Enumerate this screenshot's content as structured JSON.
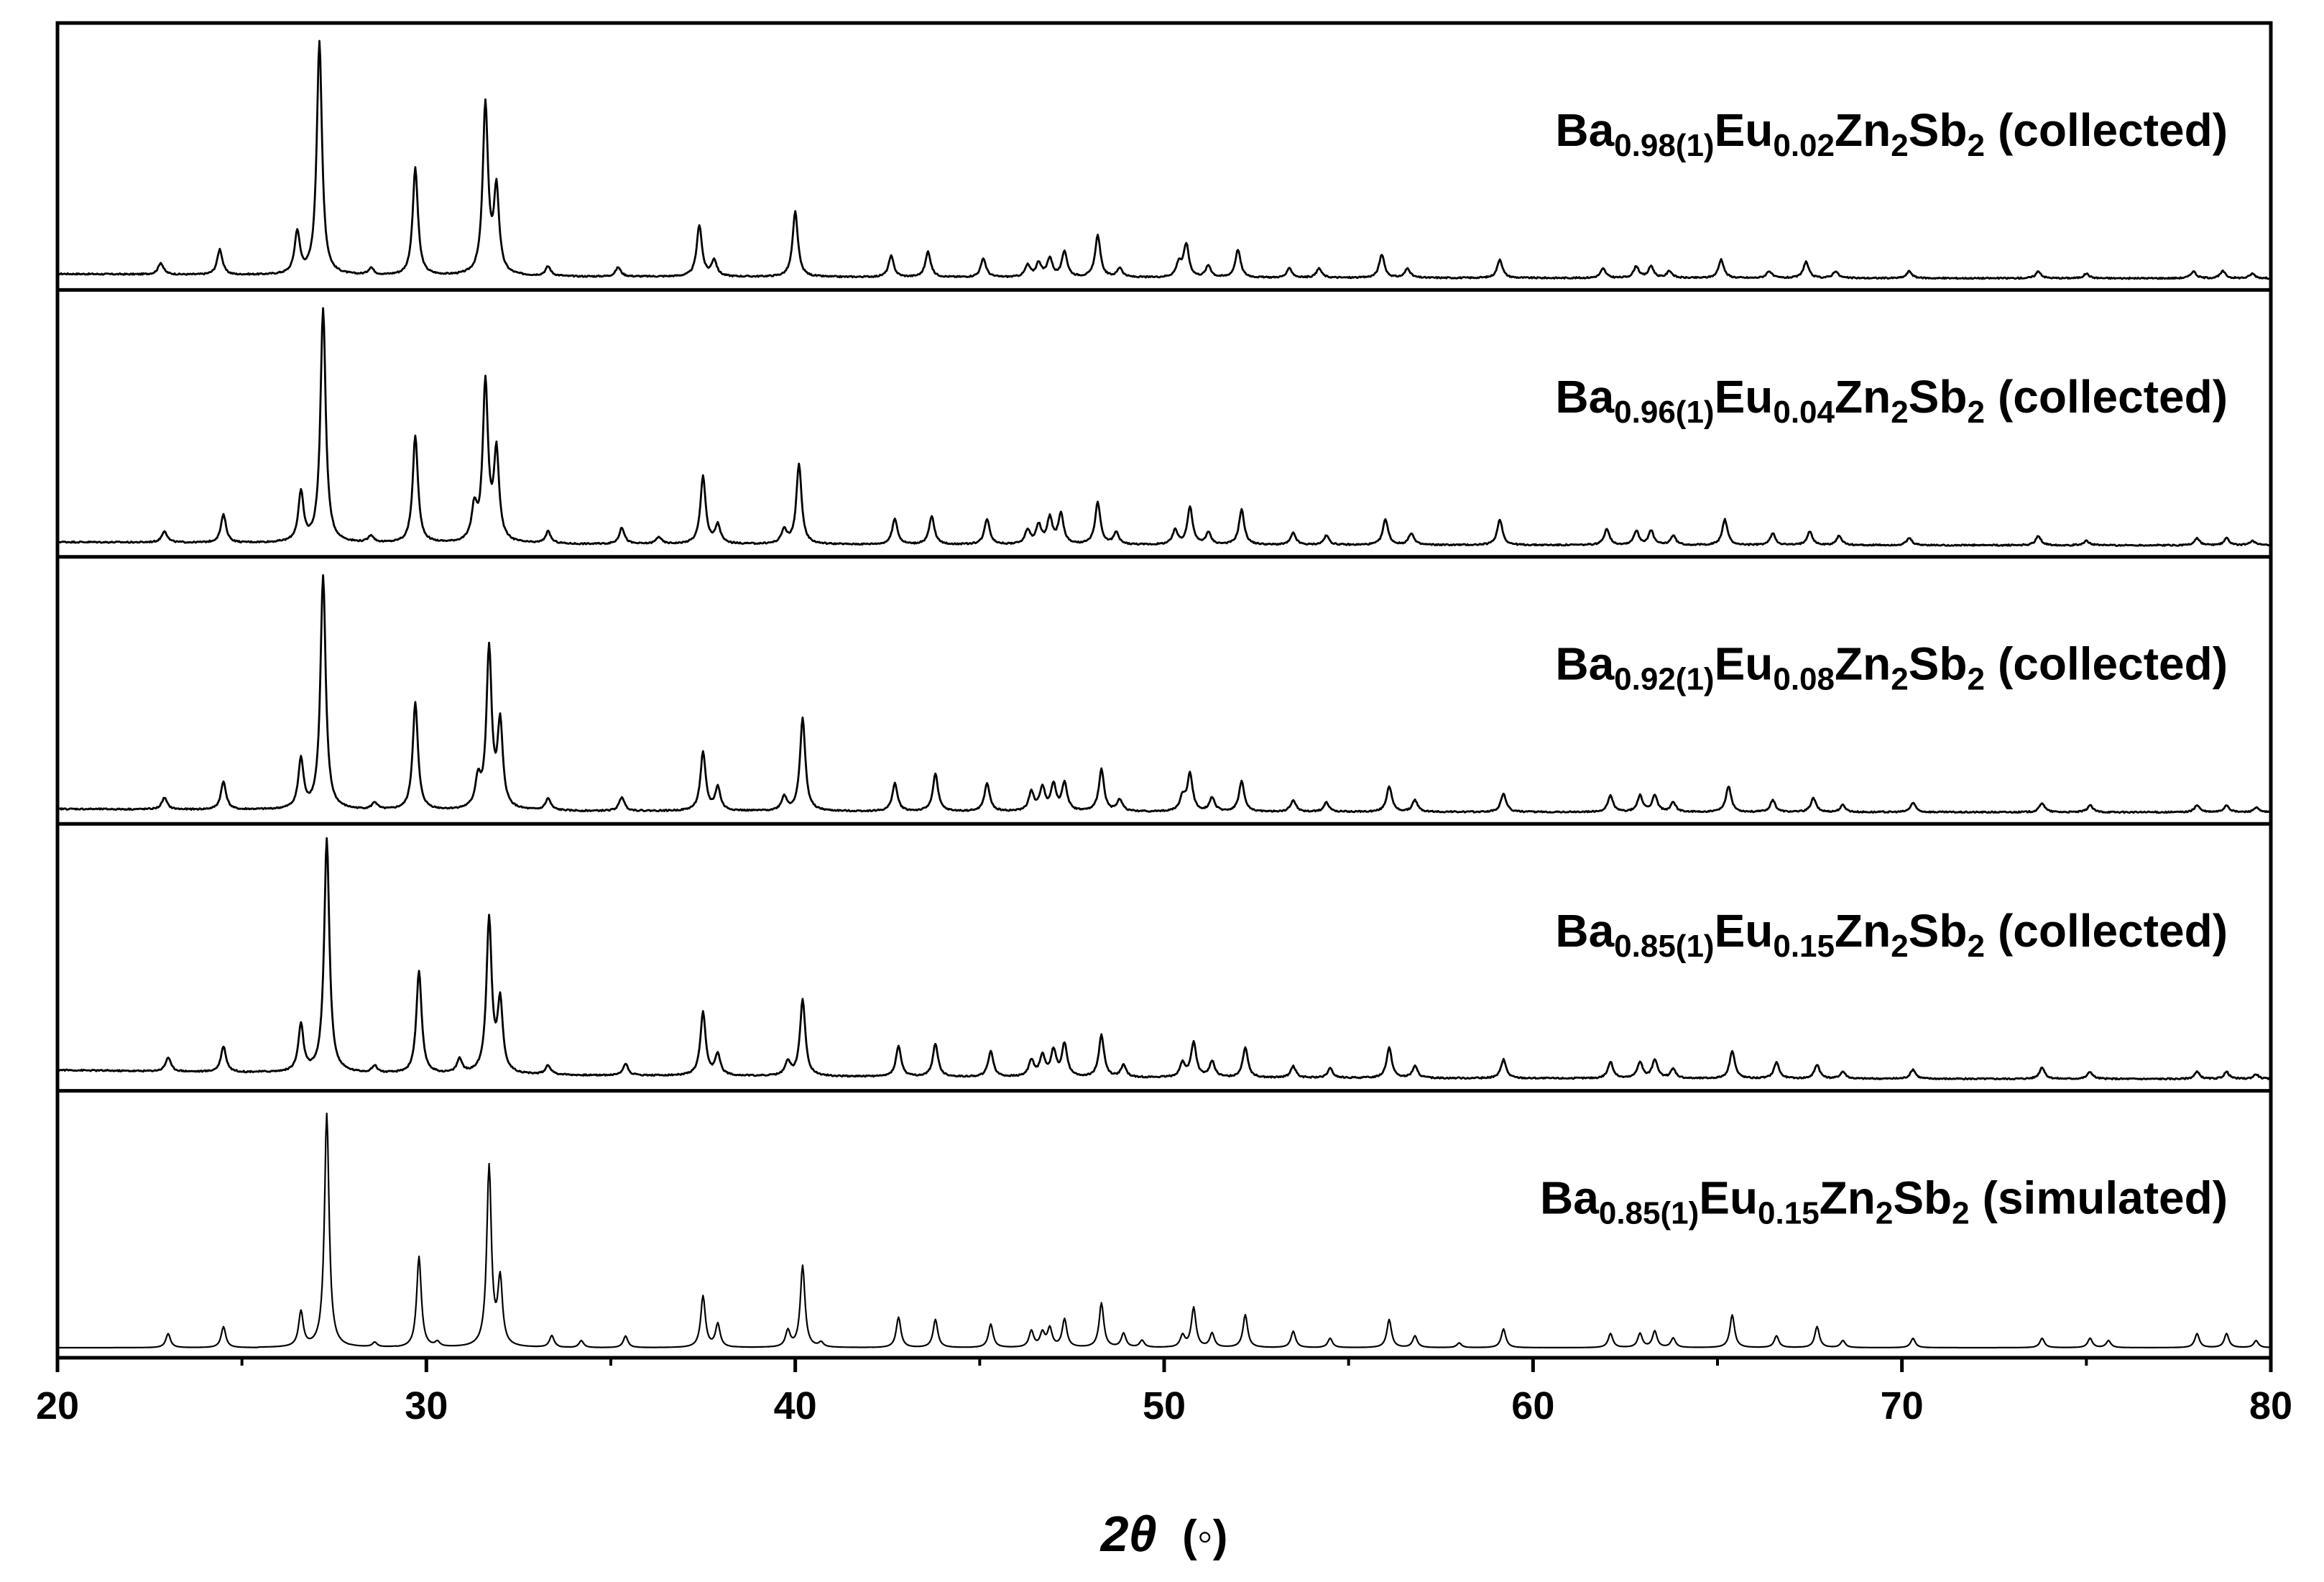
{
  "chart_data": {
    "type": "line",
    "xlabel_symbol": "2θ",
    "xlabel_unit": "(◦)",
    "xlim": [
      20,
      80
    ],
    "x_ticks": [
      20,
      30,
      40,
      50,
      60,
      70,
      80
    ],
    "y_ticks_shown": false,
    "grid": false,
    "line_color": "#000000",
    "panels": [
      {
        "label": {
          "el1": "Ba",
          "sub1": "0.98(1)",
          "el2": "Eu",
          "sub2": "0.02",
          "el3": "Zn",
          "sub3": "2",
          "el4": "Sb",
          "sub4": "2",
          "note": "(collected)"
        },
        "background": 2.0,
        "peaks": [
          [
            22.8,
            5
          ],
          [
            24.4,
            11
          ],
          [
            26.5,
            18
          ],
          [
            27.1,
            100
          ],
          [
            28.5,
            3
          ],
          [
            29.7,
            46
          ],
          [
            31.6,
            73
          ],
          [
            31.9,
            36
          ],
          [
            33.3,
            4
          ],
          [
            35.2,
            4
          ],
          [
            37.4,
            22
          ],
          [
            37.8,
            7
          ],
          [
            40.0,
            28
          ],
          [
            42.6,
            9
          ],
          [
            43.6,
            11
          ],
          [
            45.1,
            8
          ],
          [
            46.3,
            5
          ],
          [
            46.6,
            6
          ],
          [
            46.9,
            8
          ],
          [
            47.3,
            11
          ],
          [
            48.2,
            18
          ],
          [
            48.8,
            4
          ],
          [
            50.4,
            6
          ],
          [
            50.6,
            14
          ],
          [
            51.2,
            5
          ],
          [
            52.0,
            12
          ],
          [
            53.4,
            4
          ],
          [
            54.2,
            4
          ],
          [
            55.9,
            10
          ],
          [
            56.6,
            4
          ],
          [
            59.1,
            8
          ],
          [
            61.9,
            4
          ],
          [
            62.8,
            5
          ],
          [
            63.2,
            5
          ],
          [
            63.7,
            3
          ],
          [
            65.1,
            8
          ],
          [
            66.4,
            3
          ],
          [
            67.4,
            7
          ],
          [
            68.2,
            3
          ],
          [
            70.2,
            3
          ],
          [
            73.7,
            3
          ],
          [
            75.0,
            2
          ],
          [
            77.9,
            3
          ],
          [
            78.7,
            3
          ],
          [
            79.5,
            2
          ]
        ]
      },
      {
        "label": {
          "el1": "Ba",
          "sub1": "0.96(1)",
          "el2": "Eu",
          "sub2": "0.04",
          "el3": "Zn",
          "sub3": "2",
          "el4": "Sb",
          "sub4": "2",
          "note": "(collected)"
        },
        "background": 1.5,
        "peaks": [
          [
            22.9,
            5
          ],
          [
            24.5,
            12
          ],
          [
            26.6,
            21
          ],
          [
            27.2,
            100
          ],
          [
            28.5,
            3
          ],
          [
            29.7,
            46
          ],
          [
            31.3,
            14
          ],
          [
            31.6,
            68
          ],
          [
            31.9,
            38
          ],
          [
            33.3,
            5
          ],
          [
            35.3,
            7
          ],
          [
            36.3,
            3
          ],
          [
            37.5,
            29
          ],
          [
            37.9,
            8
          ],
          [
            39.7,
            6
          ],
          [
            40.1,
            34
          ],
          [
            42.7,
            11
          ],
          [
            43.7,
            12
          ],
          [
            45.2,
            11
          ],
          [
            46.3,
            6
          ],
          [
            46.6,
            8
          ],
          [
            46.9,
            11
          ],
          [
            47.2,
            13
          ],
          [
            48.2,
            18
          ],
          [
            48.7,
            5
          ],
          [
            50.3,
            6
          ],
          [
            50.7,
            16
          ],
          [
            51.2,
            5
          ],
          [
            52.1,
            15
          ],
          [
            53.5,
            5
          ],
          [
            54.4,
            4
          ],
          [
            56.0,
            11
          ],
          [
            56.7,
            5
          ],
          [
            59.1,
            11
          ],
          [
            62.0,
            7
          ],
          [
            62.8,
            6
          ],
          [
            63.2,
            6
          ],
          [
            63.8,
            4
          ],
          [
            65.2,
            11
          ],
          [
            66.5,
            5
          ],
          [
            67.5,
            6
          ],
          [
            68.3,
            4
          ],
          [
            70.2,
            3
          ],
          [
            73.7,
            4
          ],
          [
            75.0,
            2
          ],
          [
            78.0,
            3
          ],
          [
            78.8,
            3
          ],
          [
            79.5,
            2
          ]
        ]
      },
      {
        "label": {
          "el1": "Ba",
          "sub1": "0.92(1)",
          "el2": "Eu",
          "sub2": "0.08",
          "el3": "Zn",
          "sub3": "2",
          "el4": "Sb",
          "sub4": "2",
          "note": "(collected)"
        },
        "background": 1.5,
        "peaks": [
          [
            22.9,
            5
          ],
          [
            24.5,
            12
          ],
          [
            26.6,
            21
          ],
          [
            27.2,
            100
          ],
          [
            28.6,
            3
          ],
          [
            29.7,
            46
          ],
          [
            31.4,
            12
          ],
          [
            31.7,
            68
          ],
          [
            32.0,
            36
          ],
          [
            33.3,
            5
          ],
          [
            35.3,
            6
          ],
          [
            37.5,
            25
          ],
          [
            37.9,
            10
          ],
          [
            39.7,
            6
          ],
          [
            40.2,
            40
          ],
          [
            42.7,
            12
          ],
          [
            43.8,
            16
          ],
          [
            45.2,
            12
          ],
          [
            46.4,
            8
          ],
          [
            46.7,
            10
          ],
          [
            47.0,
            11
          ],
          [
            47.3,
            12
          ],
          [
            48.3,
            18
          ],
          [
            48.8,
            5
          ],
          [
            50.5,
            6
          ],
          [
            50.7,
            16
          ],
          [
            51.3,
            6
          ],
          [
            52.1,
            13
          ],
          [
            53.5,
            5
          ],
          [
            54.4,
            4
          ],
          [
            56.1,
            11
          ],
          [
            56.8,
            5
          ],
          [
            59.2,
            8
          ],
          [
            62.1,
            7
          ],
          [
            62.9,
            7
          ],
          [
            63.3,
            7
          ],
          [
            63.8,
            4
          ],
          [
            65.3,
            11
          ],
          [
            66.5,
            5
          ],
          [
            67.6,
            6
          ],
          [
            68.4,
            3
          ],
          [
            70.3,
            4
          ],
          [
            73.8,
            4
          ],
          [
            75.1,
            3
          ],
          [
            78.0,
            3
          ],
          [
            78.8,
            3
          ],
          [
            79.6,
            2
          ]
        ]
      },
      {
        "label": {
          "el1": "Ba",
          "sub1": "0.85(1)",
          "el2": "Eu",
          "sub2": "0.15",
          "el3": "Zn",
          "sub3": "2",
          "el4": "Sb",
          "sub4": "2",
          "note": "(collected)"
        },
        "background": 4.0,
        "peaks": [
          [
            23.0,
            6
          ],
          [
            24.5,
            11
          ],
          [
            26.6,
            20
          ],
          [
            27.3,
            100
          ],
          [
            28.6,
            3
          ],
          [
            29.8,
            44
          ],
          [
            30.9,
            6
          ],
          [
            31.7,
            66
          ],
          [
            32.0,
            30
          ],
          [
            33.3,
            4
          ],
          [
            35.4,
            5
          ],
          [
            37.5,
            27
          ],
          [
            37.9,
            9
          ],
          [
            39.8,
            6
          ],
          [
            40.2,
            33
          ],
          [
            42.8,
            13
          ],
          [
            43.8,
            14
          ],
          [
            45.3,
            11
          ],
          [
            46.4,
            7
          ],
          [
            46.7,
            9
          ],
          [
            47.0,
            11
          ],
          [
            47.3,
            14
          ],
          [
            48.3,
            18
          ],
          [
            48.9,
            5
          ],
          [
            50.5,
            6
          ],
          [
            50.8,
            15
          ],
          [
            51.3,
            7
          ],
          [
            52.2,
            13
          ],
          [
            53.5,
            5
          ],
          [
            54.5,
            4
          ],
          [
            56.1,
            13
          ],
          [
            56.8,
            5
          ],
          [
            59.2,
            8
          ],
          [
            62.1,
            7
          ],
          [
            62.9,
            7
          ],
          [
            63.3,
            8
          ],
          [
            63.8,
            4
          ],
          [
            65.4,
            12
          ],
          [
            66.6,
            7
          ],
          [
            67.7,
            6
          ],
          [
            68.4,
            3
          ],
          [
            70.3,
            4
          ],
          [
            73.8,
            5
          ],
          [
            75.1,
            3
          ],
          [
            78.0,
            3
          ],
          [
            78.8,
            3
          ],
          [
            79.6,
            2
          ]
        ]
      },
      {
        "label": {
          "el1": "Ba",
          "sub1": "0.85(1)",
          "el2": "Eu",
          "sub2": "0.15",
          "el3": "Zn",
          "sub3": "2",
          "el4": "Sb",
          "sub4": "2",
          "note": "(simulated)"
        },
        "background": 0,
        "peaks": [
          [
            23.0,
            6
          ],
          [
            24.5,
            9
          ],
          [
            26.6,
            15
          ],
          [
            27.3,
            100
          ],
          [
            28.6,
            2
          ],
          [
            29.8,
            39
          ],
          [
            30.3,
            2
          ],
          [
            31.7,
            77
          ],
          [
            32.0,
            28
          ],
          [
            33.4,
            5
          ],
          [
            34.2,
            3
          ],
          [
            35.4,
            5
          ],
          [
            37.5,
            22
          ],
          [
            37.9,
            10
          ],
          [
            39.8,
            7
          ],
          [
            40.2,
            35
          ],
          [
            40.7,
            2
          ],
          [
            42.8,
            13
          ],
          [
            43.8,
            12
          ],
          [
            45.3,
            10
          ],
          [
            46.4,
            7
          ],
          [
            46.7,
            6
          ],
          [
            46.9,
            8
          ],
          [
            47.3,
            12
          ],
          [
            48.3,
            19
          ],
          [
            48.9,
            6
          ],
          [
            49.4,
            3
          ],
          [
            50.5,
            5
          ],
          [
            50.8,
            17
          ],
          [
            51.3,
            6
          ],
          [
            52.2,
            14
          ],
          [
            53.5,
            7
          ],
          [
            54.5,
            4
          ],
          [
            56.1,
            12
          ],
          [
            56.8,
            5
          ],
          [
            58.0,
            2
          ],
          [
            59.2,
            8
          ],
          [
            62.1,
            6
          ],
          [
            62.9,
            6
          ],
          [
            63.3,
            7
          ],
          [
            63.8,
            4
          ],
          [
            65.4,
            14
          ],
          [
            66.6,
            5
          ],
          [
            67.7,
            9
          ],
          [
            68.4,
            3
          ],
          [
            70.3,
            4
          ],
          [
            73.8,
            4
          ],
          [
            75.1,
            4
          ],
          [
            75.6,
            3
          ],
          [
            78.0,
            6
          ],
          [
            78.8,
            6
          ],
          [
            79.6,
            3
          ]
        ]
      }
    ]
  }
}
